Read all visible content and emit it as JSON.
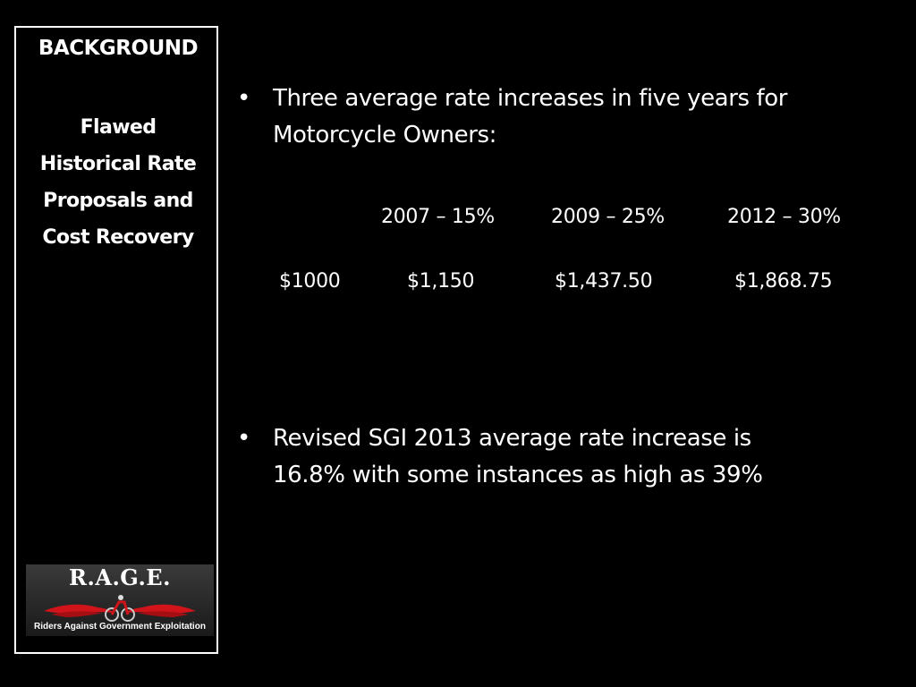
{
  "sidebar": {
    "heading": "BACKGROUND",
    "subtitle_lines": [
      "Flawed",
      "Historical Rate",
      "Proposals and",
      "Cost Recovery"
    ]
  },
  "logo": {
    "title": "R.A.G.E.",
    "tagline": "Riders Against Government Exploitation",
    "art_icon": "flame-motorcycle-icon",
    "colors": {
      "flame": "#d0141a",
      "background": "#2a2a2a"
    }
  },
  "content": {
    "bullets": [
      {
        "marker": "•",
        "text": "Three average rate increases in five years for Motorcycle Owners:"
      },
      {
        "marker": "•",
        "text": "Revised SGI 2013 average rate increase is 16.8% with some instances as high as 39%"
      }
    ],
    "rate_increases": [
      "2007 – 15%",
      "2009 – 25%",
      "2012 – 30%"
    ],
    "amounts": [
      "$1000",
      "$1,150",
      "$1,437.50",
      "$1,868.75"
    ]
  }
}
